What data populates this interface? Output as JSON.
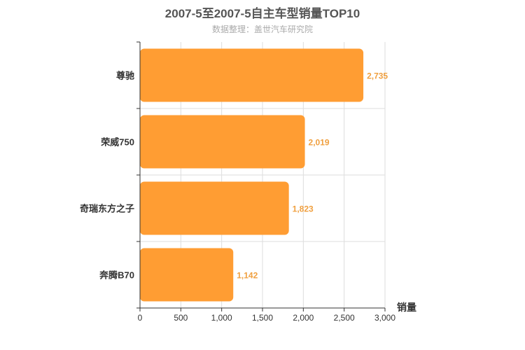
{
  "title": "2007-5至2007-5自主车型销量TOP10",
  "subtitle": "数据整理：盖世汽车研究院",
  "colors": {
    "bar": "#ff9d33",
    "data_label": "#f0a040",
    "grid": "#dddddd",
    "axis": "#333333"
  },
  "chart_data": {
    "type": "bar",
    "orientation": "horizontal",
    "title": "2007-5至2007-5自主车型销量TOP10",
    "subtitle": "数据整理：盖世汽车研究院",
    "categories": [
      "尊驰",
      "荣威750",
      "奇瑞东方之子",
      "奔腾B70"
    ],
    "values": [
      2735,
      2019,
      1823,
      1142
    ],
    "value_labels": [
      "2,735",
      "2,019",
      "1,823",
      "1,142"
    ],
    "xlabel": "销量",
    "ylabel": "",
    "xlim": [
      0,
      3000
    ],
    "x_ticks": [
      0,
      500,
      1000,
      1500,
      2000,
      2500,
      3000
    ],
    "x_tick_labels": [
      "0",
      "500",
      "1,000",
      "1,500",
      "2,000",
      "2,500",
      "3,000"
    ],
    "grid": true,
    "legend": "none"
  }
}
